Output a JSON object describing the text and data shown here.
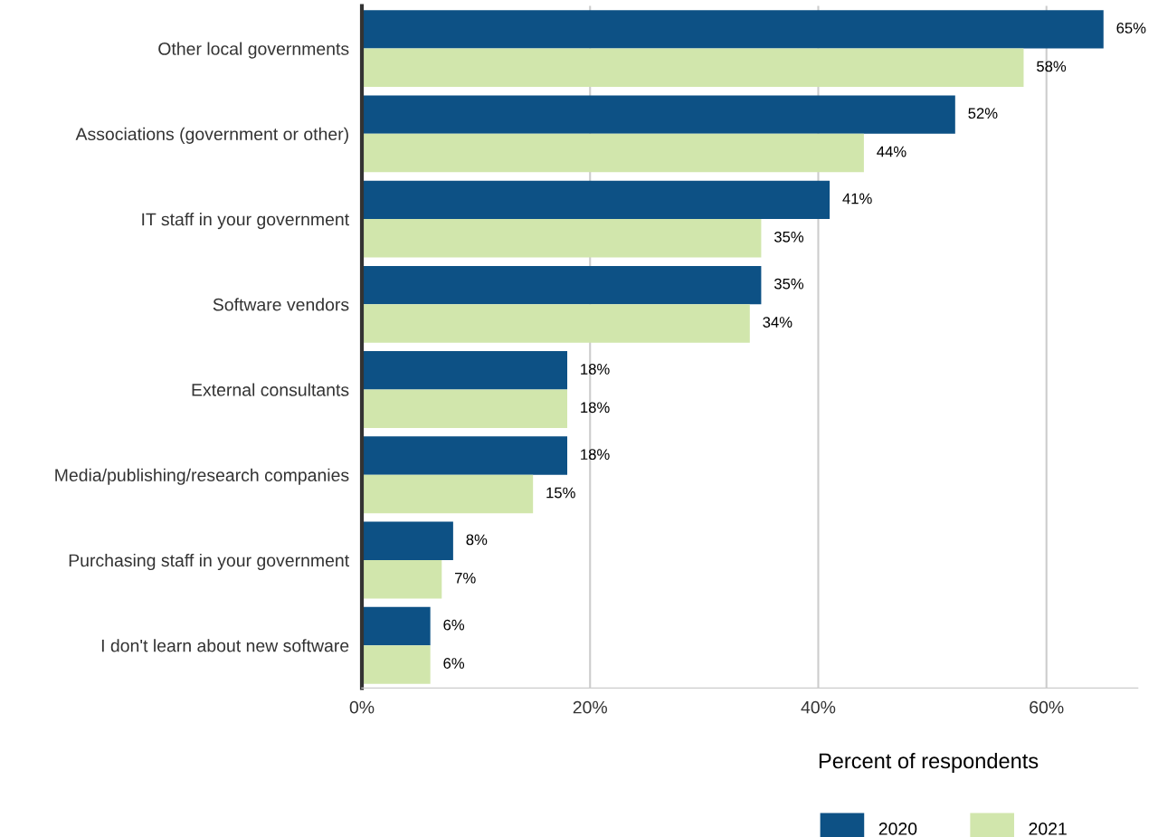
{
  "chart_data": {
    "type": "bar",
    "orientation": "horizontal",
    "xlabel": "Percent of respondents",
    "categories": [
      "Other local governments",
      "Associations (government or other)",
      "IT staff in your government",
      "Software vendors",
      "External consultants",
      "Media/publishing/research companies",
      "Purchasing staff in your government",
      "I don't learn about new software"
    ],
    "series": [
      {
        "name": "2020",
        "color": "#0d5185",
        "values": [
          65,
          52,
          41,
          35,
          18,
          18,
          8,
          6
        ],
        "value_labels": [
          "65%",
          "52%",
          "41%",
          "35%",
          "18%",
          "18%",
          "8%",
          "6%"
        ]
      },
      {
        "name": "2021",
        "color": "#d1e6ac",
        "values": [
          58,
          44,
          35,
          34,
          18,
          15,
          7,
          6
        ],
        "value_labels": [
          "58%",
          "44%",
          "35%",
          "34%",
          "18%",
          "15%",
          "7%",
          "6%"
        ]
      }
    ],
    "xlim": [
      0,
      68
    ],
    "xticks": [
      {
        "value": 0,
        "label": "0%"
      },
      {
        "value": 20,
        "label": "20%"
      },
      {
        "value": 40,
        "label": "40%"
      },
      {
        "value": 60,
        "label": "60%"
      }
    ],
    "grid": "x",
    "legend": "bottom"
  }
}
